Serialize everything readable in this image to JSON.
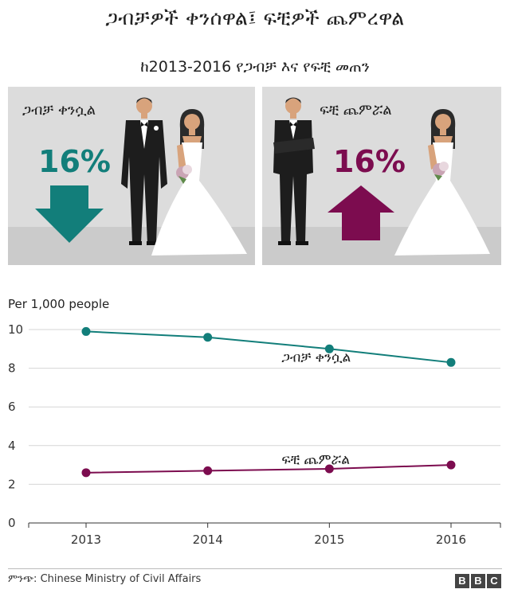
{
  "header": {
    "title": "ጋብቻዎች ቀንሰዋል፤ ፍቺዎች ጨምረዋል",
    "subtitle": "ከ2013-2016 የጋብቻ እና የፍቺ መጠን"
  },
  "panels": [
    {
      "label": "ጋብቻ ቀንሷል",
      "percent": "16%",
      "direction": "down",
      "color": "#127e7a"
    },
    {
      "label": "ፍቺ ጨምሯል",
      "percent": "16%",
      "direction": "up",
      "color": "#7c0c4f"
    }
  ],
  "chart_data": {
    "type": "line",
    "ylabel": "Per 1,000 people",
    "x": [
      2013,
      2014,
      2015,
      2016
    ],
    "ylim": [
      0,
      10
    ],
    "yticks": [
      0,
      2,
      4,
      6,
      8,
      10
    ],
    "grid": true,
    "series": [
      {
        "name": "ጋብቻ ቀንሷል",
        "values": [
          9.9,
          9.6,
          9.0,
          8.3
        ],
        "color": "#127e7a"
      },
      {
        "name": "ፍቺ ጨምሯል",
        "values": [
          2.6,
          2.7,
          2.8,
          3.0
        ],
        "color": "#7c0c4f"
      }
    ]
  },
  "footer": {
    "source": "ምንጭ: Chinese Ministry of Civil Affairs",
    "logo_letters": [
      "B",
      "B",
      "C"
    ]
  }
}
